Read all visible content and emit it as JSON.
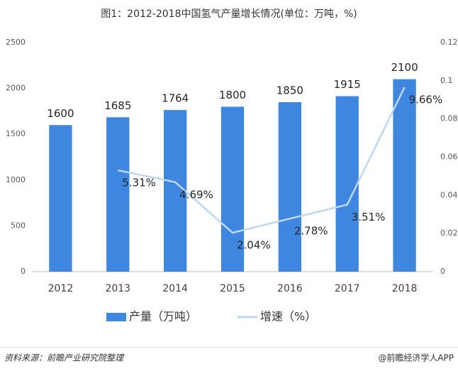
{
  "chart_data": {
    "type": "bar",
    "title": "图1：2012-2018中国氢气产量增长情况(单位：万吨，%)",
    "categories": [
      "2012",
      "2013",
      "2014",
      "2015",
      "2016",
      "2017",
      "2018"
    ],
    "series": [
      {
        "name": "产量（万吨）",
        "type": "bar",
        "color": "#3f86e0",
        "values": [
          1600,
          1685,
          1764,
          1800,
          1850,
          1915,
          2100
        ]
      },
      {
        "name": "增速（%）",
        "type": "line",
        "axis": "y2",
        "color": "#bdd7f4",
        "values": [
          null,
          0.0531,
          0.0469,
          0.0204,
          0.0278,
          0.0351,
          0.0966
        ],
        "value_labels": [
          null,
          "5.31%",
          "4.69%",
          "2.04%",
          "2.78%",
          "3.51%",
          "9.66%"
        ]
      }
    ],
    "ylim": [
      0,
      2500
    ],
    "yticks": [
      0,
      500,
      1000,
      1500,
      2000,
      2500
    ],
    "y2lim": [
      0,
      0.12
    ],
    "y2ticks": [
      0,
      0.02,
      0.04,
      0.06,
      0.08,
      0.1,
      0.12
    ],
    "grid": false,
    "legend": "bottom",
    "source": "资料来源：前瞻产业研究院整理",
    "credit": "@前瞻经济学人APP"
  }
}
